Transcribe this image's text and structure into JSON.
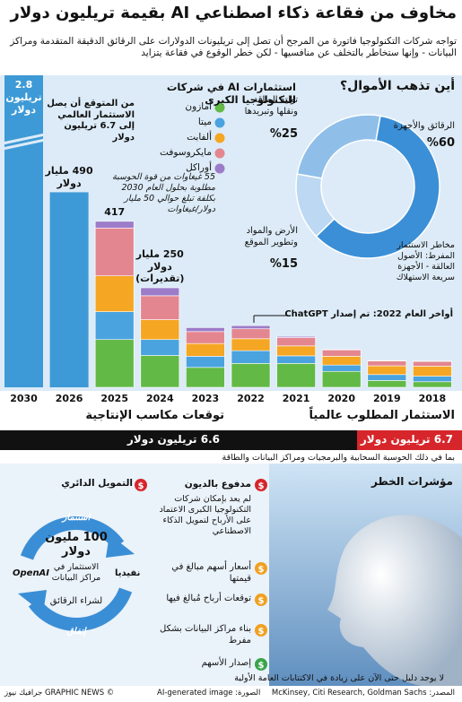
{
  "header": {
    "title": "مخاوف من فقاعة ذكاء اصطناعي AI بقيمة تريليون دولار",
    "subtitle": "تواجه شركات التكنولوجيا فاتورة من المرجح أن تصل إلى تريليونات الدولارات على الرقائق الدقيقة المتقدمة ومراكز البيانات - وإنها ستخاطر بالتخلف عن منافسيها - لكن خطر الوقوع في فقاعة يتزايد"
  },
  "chart_data": [
    {
      "type": "bar",
      "stacked": true,
      "title": "استثمارات AI في شركات التكنولوجيا الكبرى",
      "categories": [
        "2030",
        "2026",
        "2025",
        "2024",
        "2023",
        "2022",
        "2021",
        "2020",
        "2019",
        "2018"
      ],
      "series": [
        {
          "name": "أمازون",
          "color": "#63b946",
          "values": [
            null,
            null,
            120,
            80,
            50,
            60,
            60,
            40,
            17,
            14
          ]
        },
        {
          "name": "ميتا",
          "color": "#4aa3df",
          "values": [
            null,
            null,
            70,
            40,
            28,
            32,
            19,
            16,
            15,
            14
          ]
        },
        {
          "name": "ألفابت",
          "color": "#f5a623",
          "values": [
            null,
            null,
            90,
            50,
            32,
            30,
            25,
            22,
            22,
            25
          ]
        },
        {
          "name": "مايكروسوفت",
          "color": "#e4868f",
          "values": [
            null,
            null,
            120,
            60,
            30,
            25,
            21,
            16,
            12,
            12
          ]
        },
        {
          "name": "أوراكل",
          "color": "#9c7cc9",
          "values": [
            null,
            null,
            17,
            20,
            10,
            8,
            3,
            1,
            1,
            1
          ]
        }
      ],
      "totals": {
        "color": "#3d9ad6",
        "values": [
          2800,
          490,
          417,
          250,
          null,
          null,
          null,
          null,
          null,
          null
        ],
        "value_labels": [
          "2.8 تريليون دولار",
          "490 مليار دولار",
          "417",
          "250 مليار دولار (تقديرات)",
          null,
          null,
          null,
          null,
          null,
          null
        ]
      },
      "annotations": [
        "من المتوقع أن يصل الاستثمار العالمي إلى 6.7 تريليون دولار",
        "55 غيغاوات من قوة الحوسبة مطلوبة بحلول العام 2030 بكلفة تبلغ حوالي 50 مليار دولار/غيغاوات",
        "أواخر العام 2022: تم إصدار ChatGPT"
      ]
    },
    {
      "type": "pie",
      "donut": true,
      "title": "أين تذهب الأموال؟",
      "categories": [
        "الرقائق والأجهزة",
        "توليد الطاقة ونقلها وتبريدها",
        "الأرض والمواد وتطوير الموقع"
      ],
      "values": [
        60,
        25,
        15
      ],
      "value_labels": [
        "%60",
        "%25",
        "%15"
      ],
      "colors": [
        "#3b8fd6",
        "#8fbfe9",
        "#bcd8f2"
      ],
      "note": "مخاطر الاستثمار المفرط: الأصول العالقة - الأجهزة سريعة الاستهلاك"
    }
  ],
  "bottom": {
    "required_title": "الاستثمار المطلوب عالمياً",
    "required_value": "6.7 تريليون دولار",
    "gains_title": "توقعات مكاسب الإنتاجية",
    "gains_value": "6.6 تريليون دولار",
    "note": "بما في ذلك الحوسبة السحابية والبرمجيات ومراكز البيانات والطاقة"
  },
  "cycle": {
    "title": "التمويل الدائري",
    "invest": "استثمار",
    "amount": "100 مليون دولار",
    "amount_note": "الاستثمار في مراكز البيانات",
    "openai": "OpenAI",
    "nvidia": "نفيديا",
    "chips": "لشراء الرقائق",
    "spend": "إنفاق"
  },
  "risks": {
    "title": "مؤشرات الخطر",
    "symbol": "$",
    "items": [
      {
        "label": "مدفوع بالديون",
        "text": "لم يعد بإمكان شركات التكنولوجيا الكبرى الاعتماد على الأرباح لتمويل الذكاء الاصطناعي"
      },
      {
        "label": "أسعار أسهم مبالغ في قيمتها"
      },
      {
        "label": "توقعات أرباح مُبالغ فيها"
      },
      {
        "label": "بناء مراكز البيانات بشكل مفرط"
      },
      {
        "label": "إصدار الأسهم",
        "text": "لا يوجد دليل حتى الآن على زيادة في الاكتتابات العامة الأولية"
      }
    ]
  },
  "footer": {
    "source": "المصدر: McKinsey, Citi Research, Goldman Sachs",
    "image": "الصورة: AI-generated image",
    "credit": "© GRAPHIC NEWS جرافيك نيوز"
  }
}
